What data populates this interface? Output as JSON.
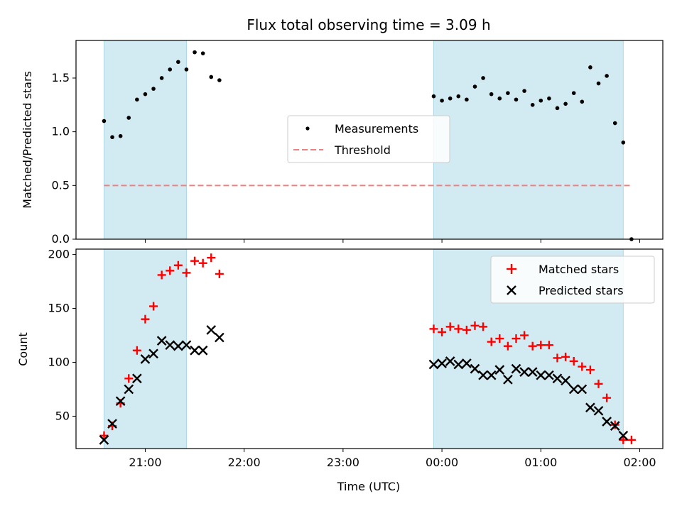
{
  "chart_data": {
    "type": "scatter",
    "title": "Flux total observing time = 3.09 h",
    "xlabel": "Time (UTC)",
    "x_ticks": [
      "21:00",
      "22:00",
      "23:00",
      "00:00",
      "01:00",
      "02:00"
    ],
    "x_range": [
      "20:18",
      "02:14"
    ],
    "shaded_intervals": [
      [
        "20:35",
        "21:25"
      ],
      [
        "23:55",
        "01:50"
      ]
    ],
    "colors": {
      "shade": "#add8e6",
      "matched": "#ff0000",
      "predicted": "#000000",
      "threshold": "#f08080",
      "measurements": "#000000"
    },
    "panels": [
      {
        "name": "ratio",
        "ylabel": "Matched/Predicted stars",
        "ylim": [
          0,
          1.85
        ],
        "y_ticks": [
          0.0,
          0.5,
          1.0,
          1.5
        ],
        "y_tick_labels": [
          "0.0",
          "0.5",
          "1.0",
          "1.5"
        ],
        "legend": {
          "position": "center",
          "entries": [
            "Measurements",
            "Threshold"
          ]
        },
        "threshold": 0.5,
        "series": [
          {
            "name": "Measurements",
            "marker": "dot",
            "points": [
              [
                "20:35",
                1.1
              ],
              [
                "20:40",
                0.95
              ],
              [
                "20:45",
                0.96
              ],
              [
                "20:50",
                1.13
              ],
              [
                "20:55",
                1.3
              ],
              [
                "21:00",
                1.35
              ],
              [
                "21:05",
                1.4
              ],
              [
                "21:10",
                1.5
              ],
              [
                "21:15",
                1.58
              ],
              [
                "21:20",
                1.65
              ],
              [
                "21:25",
                1.58
              ],
              [
                "21:30",
                1.74
              ],
              [
                "21:35",
                1.73
              ],
              [
                "21:40",
                1.51
              ],
              [
                "21:45",
                1.48
              ],
              [
                "23:55",
                1.33
              ],
              [
                "00:00",
                1.29
              ],
              [
                "00:05",
                1.31
              ],
              [
                "00:10",
                1.33
              ],
              [
                "00:15",
                1.3
              ],
              [
                "00:20",
                1.42
              ],
              [
                "00:25",
                1.5
              ],
              [
                "00:30",
                1.35
              ],
              [
                "00:35",
                1.31
              ],
              [
                "00:40",
                1.36
              ],
              [
                "00:45",
                1.3
              ],
              [
                "00:50",
                1.38
              ],
              [
                "00:55",
                1.25
              ],
              [
                "01:00",
                1.29
              ],
              [
                "01:05",
                1.31
              ],
              [
                "01:10",
                1.22
              ],
              [
                "01:15",
                1.26
              ],
              [
                "01:20",
                1.36
              ],
              [
                "01:25",
                1.28
              ],
              [
                "01:30",
                1.6
              ],
              [
                "01:35",
                1.45
              ],
              [
                "01:40",
                1.52
              ],
              [
                "01:45",
                1.08
              ],
              [
                "01:50",
                0.9
              ],
              [
                "01:55",
                0.0
              ]
            ]
          }
        ]
      },
      {
        "name": "count",
        "ylabel": "Count",
        "ylim": [
          20,
          205
        ],
        "y_ticks": [
          50,
          100,
          150,
          200
        ],
        "y_tick_labels": [
          "50",
          "100",
          "150",
          "200"
        ],
        "legend": {
          "position": "upper right",
          "entries": [
            "Matched stars",
            "Predicted stars"
          ]
        },
        "series": [
          {
            "name": "Matched stars",
            "marker": "plus",
            "points": [
              [
                "20:35",
                32
              ],
              [
                "20:40",
                41
              ],
              [
                "20:45",
                62
              ],
              [
                "20:50",
                85
              ],
              [
                "20:55",
                111
              ],
              [
                "21:00",
                140
              ],
              [
                "21:05",
                152
              ],
              [
                "21:10",
                181
              ],
              [
                "21:15",
                185
              ],
              [
                "21:20",
                190
              ],
              [
                "21:25",
                183
              ],
              [
                "21:30",
                194
              ],
              [
                "21:35",
                192
              ],
              [
                "21:40",
                197
              ],
              [
                "21:45",
                182
              ],
              [
                "23:55",
                131
              ],
              [
                "00:00",
                128
              ],
              [
                "00:05",
                133
              ],
              [
                "00:10",
                131
              ],
              [
                "00:15",
                130
              ],
              [
                "00:20",
                134
              ],
              [
                "00:25",
                133
              ],
              [
                "00:30",
                119
              ],
              [
                "00:35",
                122
              ],
              [
                "00:40",
                115
              ],
              [
                "00:45",
                122
              ],
              [
                "00:50",
                125
              ],
              [
                "00:55",
                115
              ],
              [
                "01:00",
                116
              ],
              [
                "01:05",
                116
              ],
              [
                "01:10",
                104
              ],
              [
                "01:15",
                105
              ],
              [
                "01:20",
                101
              ],
              [
                "01:25",
                96
              ],
              [
                "01:30",
                93
              ],
              [
                "01:35",
                80
              ],
              [
                "01:40",
                67
              ],
              [
                "01:45",
                42
              ],
              [
                "01:50",
                28
              ],
              [
                "01:55",
                28
              ]
            ]
          },
          {
            "name": "Predicted stars",
            "marker": "x",
            "points": [
              [
                "20:35",
                28
              ],
              [
                "20:40",
                43
              ],
              [
                "20:45",
                64
              ],
              [
                "20:50",
                75
              ],
              [
                "20:55",
                85
              ],
              [
                "21:00",
                103
              ],
              [
                "21:05",
                108
              ],
              [
                "21:10",
                120
              ],
              [
                "21:15",
                116
              ],
              [
                "21:20",
                115
              ],
              [
                "21:25",
                116
              ],
              [
                "21:30",
                111
              ],
              [
                "21:35",
                111
              ],
              [
                "21:40",
                130
              ],
              [
                "21:45",
                123
              ],
              [
                "23:55",
                98
              ],
              [
                "00:00",
                99
              ],
              [
                "00:05",
                101
              ],
              [
                "00:10",
                98
              ],
              [
                "00:15",
                99
              ],
              [
                "00:20",
                94
              ],
              [
                "00:25",
                88
              ],
              [
                "00:30",
                88
              ],
              [
                "00:35",
                93
              ],
              [
                "00:40",
                84
              ],
              [
                "00:45",
                94
              ],
              [
                "00:50",
                91
              ],
              [
                "00:55",
                91
              ],
              [
                "01:00",
                88
              ],
              [
                "01:05",
                88
              ],
              [
                "01:10",
                85
              ],
              [
                "01:15",
                83
              ],
              [
                "01:20",
                75
              ],
              [
                "01:25",
                75
              ],
              [
                "01:30",
                58
              ],
              [
                "01:35",
                55
              ],
              [
                "01:40",
                45
              ],
              [
                "01:45",
                41
              ],
              [
                "01:50",
                32
              ]
            ]
          }
        ]
      }
    ]
  }
}
